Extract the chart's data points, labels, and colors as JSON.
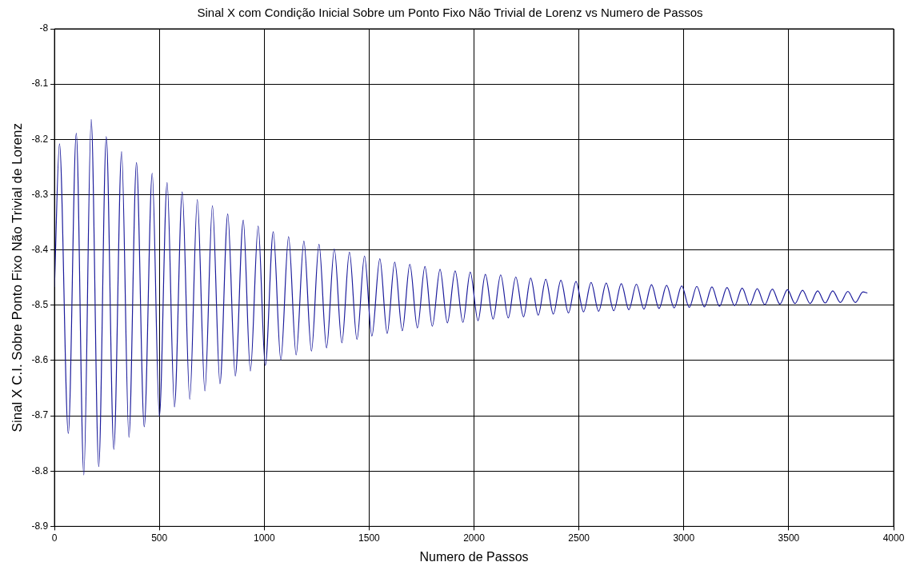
{
  "chart_data": {
    "type": "line",
    "title": "Sinal X com Condição Inicial Sobre um Ponto Fixo Não Trivial de Lorenz vs Numero de Passos",
    "xlabel": "Numero de Passos",
    "ylabel": "Sinal X C.I. Sobre Ponto Fixo Não Trivial de Lorenz",
    "x": [
      0,
      24,
      66,
      104,
      140,
      175,
      211,
      247,
      283,
      320,
      355,
      391,
      428,
      466,
      500,
      537,
      572,
      609,
      645,
      681,
      717,
      753,
      789,
      826,
      862,
      900,
      934,
      971,
      1005,
      1043,
      1079,
      1116,
      1152,
      1189,
      1225,
      1261,
      1297,
      1334,
      1370,
      1406,
      1442,
      1478,
      1513,
      1551,
      1586,
      1622,
      1658,
      1694,
      1730,
      1766,
      1801,
      1838,
      1873,
      1910,
      1947,
      1982,
      2019,
      2054,
      2091,
      2127,
      2163,
      2199,
      2236,
      2270,
      2306,
      2342,
      2378,
      2414,
      2450,
      2486,
      2522,
      2558,
      2594,
      2630,
      2666,
      2702,
      2738,
      2774,
      2810,
      2846,
      2882,
      2918,
      2954,
      2990,
      3026,
      3062,
      3098,
      3134,
      3170,
      3206,
      3242,
      3278,
      3314,
      3350,
      3386,
      3422,
      3458,
      3494,
      3530,
      3566,
      3602,
      3638,
      3674,
      3710,
      3746,
      3782,
      3818,
      3854,
      3875
    ],
    "series": [
      {
        "color": "#1c1c9c",
        "values": [
          -8.467,
          -8.208,
          -8.732,
          -8.189,
          -8.807,
          -8.164,
          -8.792,
          -8.195,
          -8.761,
          -8.222,
          -8.739,
          -8.242,
          -8.72,
          -8.261,
          -8.701,
          -8.278,
          -8.684,
          -8.295,
          -8.67,
          -8.309,
          -8.655,
          -8.32,
          -8.642,
          -8.335,
          -8.628,
          -8.346,
          -8.619,
          -8.357,
          -8.609,
          -8.367,
          -8.599,
          -8.376,
          -8.59,
          -8.384,
          -8.583,
          -8.39,
          -8.577,
          -8.398,
          -8.568,
          -8.404,
          -8.562,
          -8.411,
          -8.556,
          -8.416,
          -8.551,
          -8.422,
          -8.546,
          -8.426,
          -8.541,
          -8.43,
          -8.538,
          -8.435,
          -8.532,
          -8.438,
          -8.531,
          -8.44,
          -8.528,
          -8.444,
          -8.525,
          -8.445,
          -8.523,
          -8.449,
          -8.521,
          -8.451,
          -8.518,
          -8.453,
          -8.516,
          -8.455,
          -8.514,
          -8.457,
          -8.512,
          -8.459,
          -8.511,
          -8.46,
          -8.51,
          -8.461,
          -8.508,
          -8.462,
          -8.507,
          -8.463,
          -8.506,
          -8.464,
          -8.505,
          -8.465,
          -8.504,
          -8.466,
          -8.503,
          -8.467,
          -8.502,
          -8.468,
          -8.501,
          -8.469,
          -8.5,
          -8.47,
          -8.499,
          -8.471,
          -8.498,
          -8.472,
          -8.497,
          -8.473,
          -8.497,
          -8.474,
          -8.496,
          -8.474,
          -8.495,
          -8.475,
          -8.495,
          -8.476,
          -8.478
        ]
      }
    ],
    "xlim": [
      0,
      4000
    ],
    "xticks": [
      0,
      500,
      1000,
      1500,
      2000,
      2500,
      3000,
      3500,
      4000
    ],
    "ylim": [
      -8.9,
      -8
    ],
    "yticks": [
      -8.9,
      -8.8,
      -8.7,
      -8.6,
      -8.5,
      -8.4,
      -8.3,
      -8.2,
      -8.1,
      -8
    ],
    "grid": true,
    "legend": false,
    "marker": "none",
    "line_style": "solid"
  }
}
